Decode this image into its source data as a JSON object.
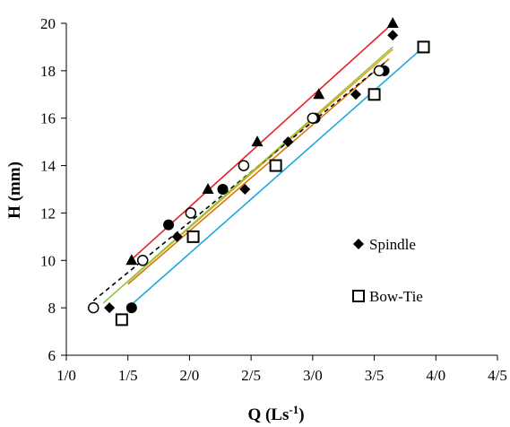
{
  "chart_data": {
    "type": "scatter",
    "xlabel": "Q (Ls",
    "xlabel_sup": "-1",
    "xlabel_close": ")",
    "ylabel": "H (mm)",
    "xlim": [
      1.0,
      4.5
    ],
    "ylim": [
      6,
      20
    ],
    "x_ticks": [
      1.0,
      1.5,
      2.0,
      2.5,
      3.0,
      3.5,
      4.0,
      4.5
    ],
    "x_tick_labels": [
      "1/0",
      "1/5",
      "2/0",
      "2/5",
      "3/0",
      "3/5",
      "4/0",
      "4/5"
    ],
    "y_ticks": [
      6,
      8,
      10,
      12,
      14,
      16,
      18,
      20
    ],
    "y_tick_labels": [
      "6",
      "8",
      "10",
      "12",
      "14",
      "16",
      "18",
      "20"
    ],
    "grid": false,
    "legend_position": "right",
    "legend_entries": [
      "Spindle",
      "Bow-Tie"
    ],
    "series": [
      {
        "name": "Spindle",
        "marker": "diamond",
        "points": [
          [
            1.35,
            8.0
          ],
          [
            1.9,
            11.0
          ],
          [
            2.45,
            13.0
          ],
          [
            2.8,
            15.0
          ],
          [
            3.35,
            17.0
          ],
          [
            3.65,
            19.5
          ]
        ],
        "trend": {
          "x": [
            1.5,
            3.65
          ],
          "y": [
            9.1,
            18.9
          ],
          "color": "#f39c12"
        }
      },
      {
        "name": "Bow-Tie",
        "marker": "square-open",
        "points": [
          [
            1.45,
            7.5
          ],
          [
            2.03,
            11.0
          ],
          [
            2.7,
            14.0
          ],
          [
            3.5,
            17.0
          ],
          [
            3.9,
            19.0
          ]
        ],
        "trend": {
          "x": [
            1.5,
            3.9
          ],
          "y": [
            8.0,
            19.0
          ],
          "color": "#1ea7e1"
        }
      },
      {
        "marker": "triangle",
        "points": [
          [
            1.53,
            10.0
          ],
          [
            2.15,
            13.0
          ],
          [
            2.55,
            15.0
          ],
          [
            3.05,
            17.0
          ],
          [
            3.65,
            20.0
          ]
        ],
        "trend": {
          "x": [
            1.5,
            3.65
          ],
          "y": [
            9.9,
            20.0
          ],
          "color": "#e8202a"
        }
      },
      {
        "marker": "circle",
        "points": [
          [
            1.53,
            8.0
          ],
          [
            1.83,
            11.5
          ],
          [
            2.27,
            13.0
          ],
          [
            3.02,
            16.0
          ],
          [
            3.58,
            18.0
          ]
        ],
        "trend": {
          "x": [
            1.5,
            3.62
          ],
          "y": [
            9.0,
            18.5
          ],
          "color": "#d4770f"
        }
      },
      {
        "marker": "circle-open",
        "points": [
          [
            1.22,
            8.0
          ],
          [
            1.62,
            10.0
          ],
          [
            2.01,
            12.0
          ],
          [
            2.44,
            14.0
          ],
          [
            3.0,
            16.0
          ],
          [
            3.54,
            18.0
          ]
        ],
        "trend": {
          "x": [
            1.22,
            3.6
          ],
          "y": [
            8.3,
            18.4
          ],
          "color": "#000000",
          "dashed": true
        }
      },
      {
        "marker": "none",
        "points": [],
        "trend": {
          "x": [
            1.3,
            3.65
          ],
          "y": [
            8.2,
            19.0
          ],
          "color": "#8cc63f"
        }
      }
    ]
  }
}
